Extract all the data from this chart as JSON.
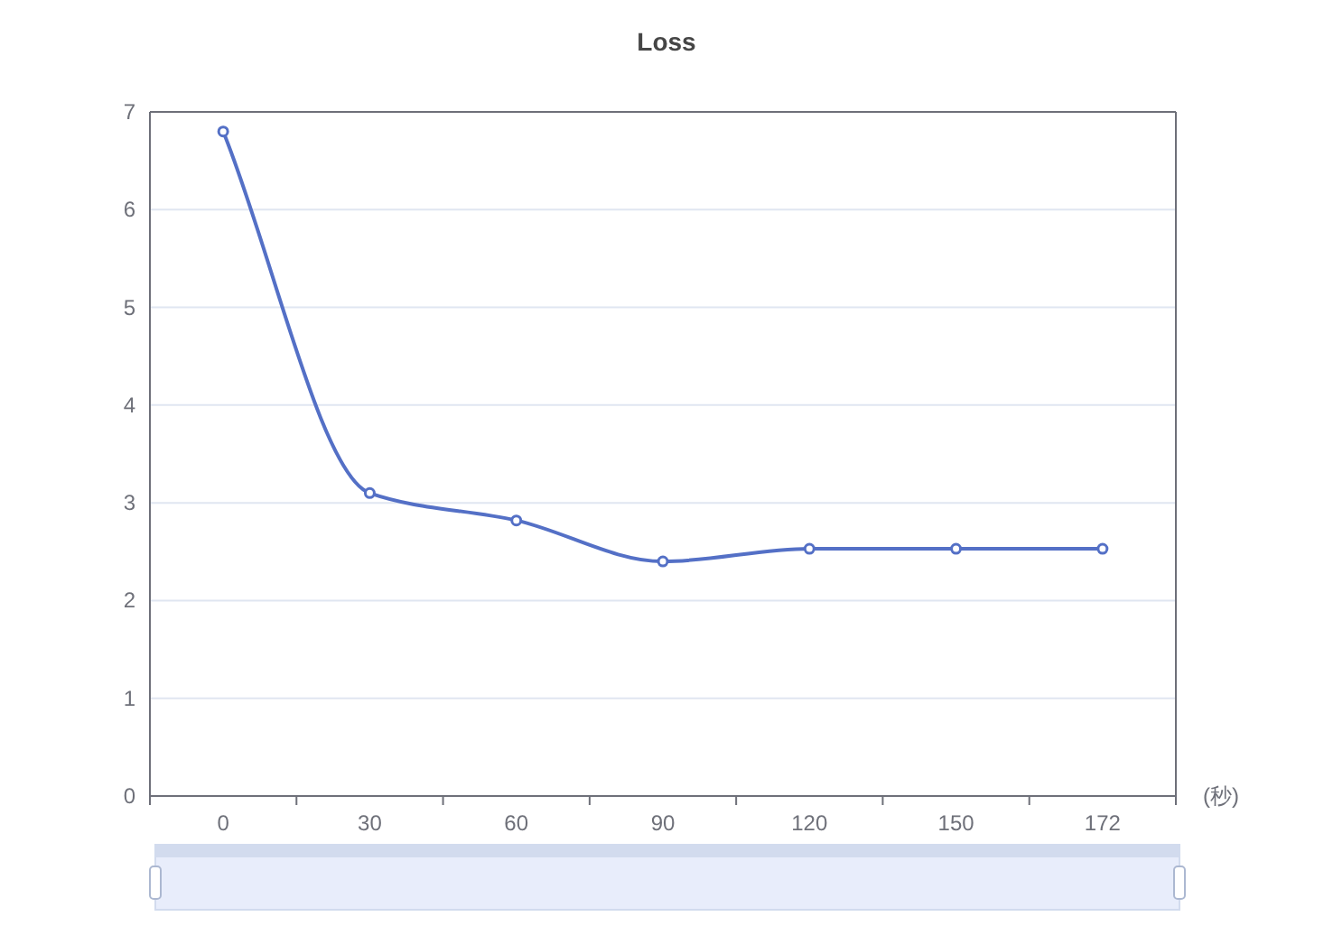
{
  "chart_data": {
    "type": "line",
    "title": "Loss",
    "xlabel": "(秒)",
    "categories": [
      "0",
      "30",
      "60",
      "90",
      "120",
      "150",
      "172"
    ],
    "series": [
      {
        "color": "#5470c6",
        "values": [
          6.8,
          3.1,
          2.82,
          2.4,
          2.53,
          2.53,
          2.53
        ]
      }
    ],
    "ylim": [
      0,
      7
    ],
    "yticks": [
      0,
      1,
      2,
      3,
      4,
      5,
      6,
      7
    ],
    "grid": "y",
    "marker": "circle"
  }
}
